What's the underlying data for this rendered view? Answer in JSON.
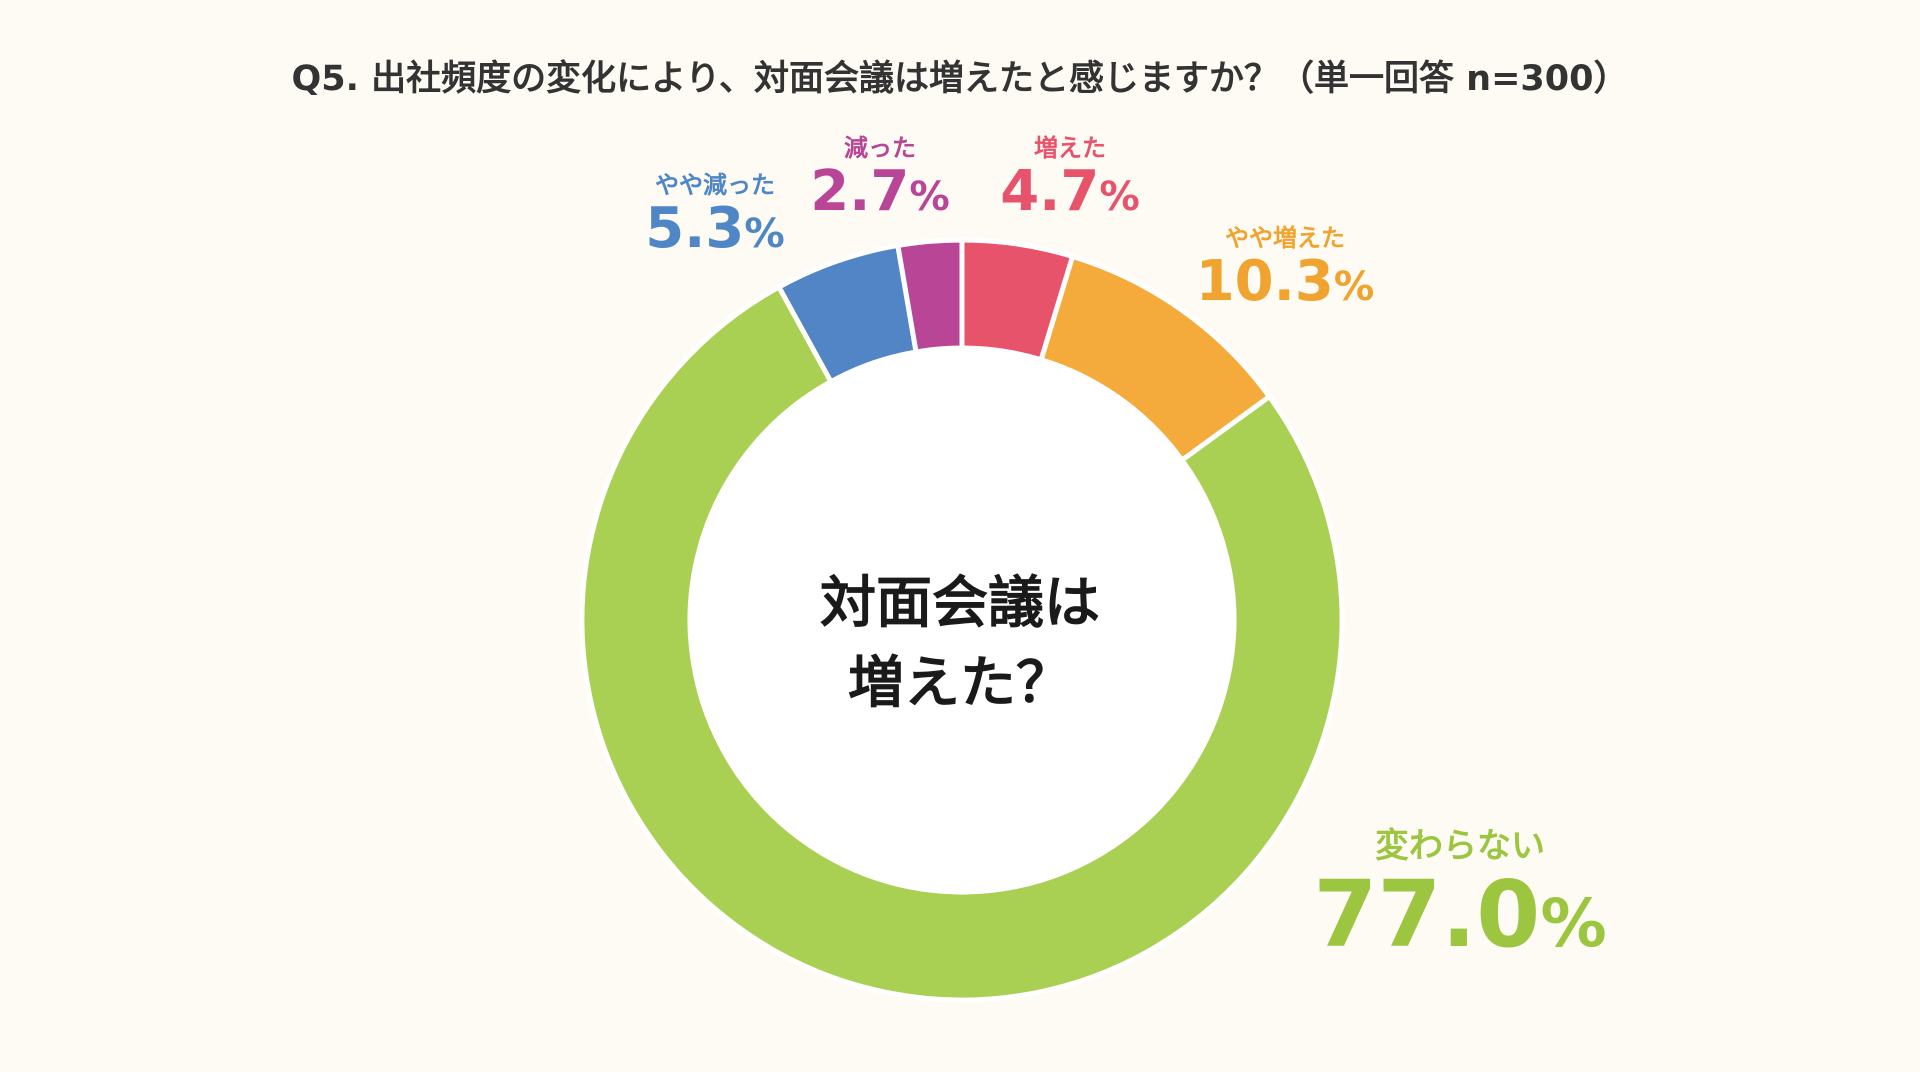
{
  "chart_data": {
    "type": "pie",
    "variant": "donut",
    "title": "Q5. 出社頻度の変化により、対面会議は増えたと感じますか？（単一回答 n=300）",
    "center_text": [
      "対面会議は",
      "増えた？"
    ],
    "unit": "%",
    "slices": [
      {
        "label": "増えた",
        "value": 4.7,
        "color": "#e8536c"
      },
      {
        "label": "やや増えた",
        "value": 10.3,
        "color": "#f4ab3c"
      },
      {
        "label": "変わらない",
        "value": 77.0,
        "color": "#a9d052"
      },
      {
        "label": "やや減った",
        "value": 5.3,
        "color": "#5185c5"
      },
      {
        "label": "減った",
        "value": 2.7,
        "color": "#b94596"
      }
    ]
  },
  "labels": {
    "increased": {
      "label": "増えた",
      "value_text": "4.7",
      "unit": "%",
      "color": "#e8536c"
    },
    "slightly_increased": {
      "label": "やや増えた",
      "value_text": "10.3",
      "unit": "%",
      "color": "#f0a32e"
    },
    "unchanged": {
      "label": "変わらない",
      "value_text": "77.0",
      "unit": "%",
      "color": "#9cc63f"
    },
    "slightly_decreased": {
      "label": "やや減った",
      "value_text": "5.3",
      "unit": "%",
      "color": "#4f86c6"
    },
    "decreased": {
      "label": "減った",
      "value_text": "2.7",
      "unit": "%",
      "color": "#b94596"
    }
  }
}
